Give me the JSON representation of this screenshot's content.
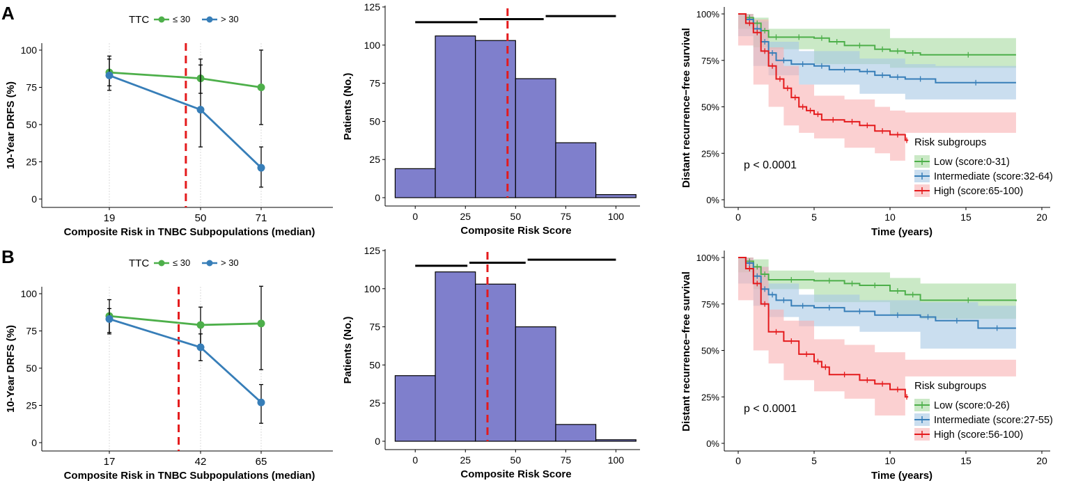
{
  "panel_labels": [
    "A",
    "B"
  ],
  "chart_data": [
    {
      "id": "A1",
      "type": "line",
      "title": "",
      "legend_title": "TTC",
      "legend_labels": [
        "≤ 30",
        "> 30"
      ],
      "xlabel": "Composite Risk in TNBC Subpopulations (median)",
      "ylabel": "10-Year DRFS (%)",
      "categories": [
        "19",
        "50",
        "71"
      ],
      "ylim": [
        0,
        100
      ],
      "yticks": [
        "0",
        "25",
        "50",
        "75",
        "100"
      ],
      "cutoff": 45,
      "series": [
        {
          "name": "≤ 30",
          "color": "#4DAF4A",
          "values": [
            85,
            81,
            75
          ],
          "lower": [
            76,
            71,
            50
          ],
          "upper": [
            94,
            90,
            100
          ]
        },
        {
          "name": "> 30",
          "color": "#377EB8",
          "values": [
            83,
            60,
            21
          ],
          "lower": [
            73,
            35,
            8
          ],
          "upper": [
            96,
            94,
            35
          ]
        }
      ]
    },
    {
      "id": "A2",
      "type": "bar",
      "xlabel": "Composite Risk Score",
      "ylabel": "Patients (No.)",
      "bins": [
        [
          -10,
          10
        ],
        [
          10,
          30
        ],
        [
          30,
          50
        ],
        [
          50,
          70
        ],
        [
          70,
          90
        ],
        [
          90,
          110
        ]
      ],
      "values": [
        19,
        106,
        103,
        78,
        36,
        2
      ],
      "xlim": [
        -15,
        112
      ],
      "ylim": [
        0,
        125
      ],
      "xticks": [
        "0",
        "25",
        "50",
        "75",
        "100"
      ],
      "yticks": [
        "0",
        "25",
        "50",
        "75",
        "100",
        "125"
      ],
      "cutoff": 46,
      "range_bars": [
        [
          0,
          31,
          115
        ],
        [
          32,
          64,
          117
        ],
        [
          65,
          100,
          119
        ]
      ],
      "bar_color": "#7F7FCC"
    },
    {
      "id": "A3",
      "type": "line",
      "xlabel": "Time (years)",
      "ylabel": "Distant recurrence−free survival",
      "xlim": [
        0,
        20
      ],
      "ylim": [
        0,
        1
      ],
      "xticks": [
        "0",
        "5",
        "10",
        "15",
        "20"
      ],
      "yticks": [
        "0%",
        "25%",
        "50%",
        "75%",
        "100%"
      ],
      "pvalue": "p < 0.0001",
      "legend_title": "Risk subgroups",
      "series": [
        {
          "name": "Low (score:0-31)",
          "color": "#4DAF4A",
          "fill": "#A6DBA0",
          "points": [
            [
              0,
              1
            ],
            [
              0.5,
              0.98
            ],
            [
              1,
              0.95
            ],
            [
              1.5,
              0.91
            ],
            [
              2,
              0.875
            ],
            [
              3,
              0.875
            ],
            [
              5,
              0.87
            ],
            [
              6,
              0.85
            ],
            [
              7,
              0.83
            ],
            [
              9,
              0.81
            ],
            [
              10,
              0.8
            ],
            [
              11,
              0.79
            ],
            [
              12,
              0.78
            ],
            [
              18.3,
              0.78
            ]
          ],
          "band": [
            [
              0,
              1,
              1
            ],
            [
              1,
              0.98,
              0.92
            ],
            [
              2,
              0.92,
              0.82
            ],
            [
              5,
              0.92,
              0.81
            ],
            [
              10,
              0.87,
              0.73
            ],
            [
              12,
              0.87,
              0.71
            ],
            [
              18.3,
              0.87,
              0.71
            ]
          ]
        },
        {
          "name": "Intermediate (score:32-64)",
          "color": "#377EB8",
          "fill": "#A6C8E5",
          "points": [
            [
              0,
              1
            ],
            [
              0.5,
              0.97
            ],
            [
              1,
              0.92
            ],
            [
              1.5,
              0.85
            ],
            [
              2,
              0.79
            ],
            [
              2.5,
              0.75
            ],
            [
              3.5,
              0.73
            ],
            [
              5,
              0.72
            ],
            [
              6,
              0.7
            ],
            [
              8,
              0.69
            ],
            [
              9,
              0.67
            ],
            [
              10,
              0.66
            ],
            [
              11,
              0.65
            ],
            [
              13,
              0.63
            ],
            [
              18.3,
              0.63
            ]
          ],
          "band": [
            [
              0,
              1,
              1
            ],
            [
              1,
              0.96,
              0.88
            ],
            [
              2,
              0.85,
              0.72
            ],
            [
              4,
              0.8,
              0.67
            ],
            [
              8,
              0.76,
              0.62
            ],
            [
              11,
              0.73,
              0.57
            ],
            [
              13,
              0.72,
              0.54
            ],
            [
              18.3,
              0.72,
              0.54
            ]
          ]
        },
        {
          "name": "High (score:65-100)",
          "color": "#E41A1C",
          "fill": "#F8B0B3",
          "points": [
            [
              0,
              1
            ],
            [
              0.5,
              0.95
            ],
            [
              1,
              0.9
            ],
            [
              1.5,
              0.8
            ],
            [
              2,
              0.72
            ],
            [
              2.5,
              0.65
            ],
            [
              3,
              0.6
            ],
            [
              3.5,
              0.55
            ],
            [
              4,
              0.5
            ],
            [
              4.5,
              0.48
            ],
            [
              5,
              0.46
            ],
            [
              5.5,
              0.43
            ],
            [
              7,
              0.42
            ],
            [
              8,
              0.4
            ],
            [
              9,
              0.37
            ],
            [
              10,
              0.35
            ],
            [
              11,
              0.32
            ],
            [
              11.2,
              0.32
            ]
          ],
          "band": [
            [
              0,
              1,
              1
            ],
            [
              1,
              0.97,
              0.83
            ],
            [
              2,
              0.82,
              0.62
            ],
            [
              3,
              0.72,
              0.5
            ],
            [
              4,
              0.62,
              0.4
            ],
            [
              5,
              0.56,
              0.36
            ],
            [
              7,
              0.54,
              0.33
            ],
            [
              9,
              0.5,
              0.28
            ],
            [
              10,
              0.48,
              0.25
            ],
            [
              11,
              0.47,
              0.21
            ],
            [
              18.3,
              0.46,
              0.36
            ]
          ]
        }
      ]
    },
    {
      "id": "B1",
      "type": "line",
      "title": "",
      "legend_title": "TTC",
      "legend_labels": [
        "≤ 30",
        "> 30"
      ],
      "xlabel": "Composite Risk in TNBC Subpopulations (median)",
      "ylabel": "10-Year DRFS (%)",
      "categories": [
        "17",
        "42",
        "65"
      ],
      "ylim": [
        0,
        100
      ],
      "yticks": [
        "0",
        "25",
        "50",
        "75",
        "100"
      ],
      "cutoff": 36,
      "series": [
        {
          "name": "≤ 30",
          "color": "#4DAF4A",
          "values": [
            85,
            79,
            80
          ],
          "lower": [
            74,
            66,
            49
          ],
          "upper": [
            96,
            91,
            105
          ]
        },
        {
          "name": "> 30",
          "color": "#377EB8",
          "values": [
            83,
            64,
            27
          ],
          "lower": [
            73,
            55,
            13
          ],
          "upper": [
            90,
            73,
            39
          ]
        }
      ]
    },
    {
      "id": "B2",
      "type": "bar",
      "xlabel": "Composite Risk Score",
      "ylabel": "Patients (No.)",
      "bins": [
        [
          -10,
          10
        ],
        [
          10,
          30
        ],
        [
          30,
          50
        ],
        [
          50,
          70
        ],
        [
          70,
          90
        ],
        [
          90,
          110
        ]
      ],
      "values": [
        43,
        111,
        103,
        75,
        11,
        1
      ],
      "xlim": [
        -15,
        112
      ],
      "ylim": [
        0,
        125
      ],
      "xticks": [
        "0",
        "25",
        "50",
        "75",
        "100"
      ],
      "yticks": [
        "0",
        "25",
        "50",
        "75",
        "100",
        "125"
      ],
      "cutoff": 36,
      "range_bars": [
        [
          0,
          26,
          115
        ],
        [
          27,
          55,
          117
        ],
        [
          56,
          100,
          119
        ]
      ],
      "bar_color": "#7F7FCC"
    },
    {
      "id": "B3",
      "type": "line",
      "xlabel": "Time (years)",
      "ylabel": "Distant recurrence−free survival",
      "xlim": [
        0,
        20
      ],
      "ylim": [
        0,
        1
      ],
      "xticks": [
        "0",
        "5",
        "10",
        "15",
        "20"
      ],
      "yticks": [
        "0%",
        "25%",
        "50%",
        "75%",
        "100%"
      ],
      "pvalue": "p < 0.0001",
      "legend_title": "Risk subgroups",
      "series": [
        {
          "name": "Low (score:0-26)",
          "color": "#4DAF4A",
          "fill": "#A6DBA0",
          "points": [
            [
              0,
              1
            ],
            [
              0.5,
              0.98
            ],
            [
              1,
              0.95
            ],
            [
              1.5,
              0.91
            ],
            [
              2,
              0.88
            ],
            [
              5,
              0.875
            ],
            [
              7,
              0.86
            ],
            [
              8,
              0.85
            ],
            [
              10,
              0.82
            ],
            [
              11,
              0.8
            ],
            [
              12,
              0.77
            ],
            [
              18.3,
              0.765
            ]
          ],
          "band": [
            [
              0,
              1,
              1
            ],
            [
              1,
              0.99,
              0.92
            ],
            [
              2,
              0.93,
              0.83
            ],
            [
              5,
              0.92,
              0.83
            ],
            [
              10,
              0.89,
              0.76
            ],
            [
              12,
              0.86,
              0.69
            ],
            [
              18.3,
              0.85,
              0.67
            ]
          ]
        },
        {
          "name": "Intermediate (score:27-55)",
          "color": "#377EB8",
          "fill": "#A6C8E5",
          "points": [
            [
              0,
              1
            ],
            [
              0.5,
              0.97
            ],
            [
              1,
              0.9
            ],
            [
              1.5,
              0.83
            ],
            [
              2,
              0.8
            ],
            [
              2.5,
              0.77
            ],
            [
              3.5,
              0.74
            ],
            [
              5,
              0.73
            ],
            [
              7,
              0.71
            ],
            [
              9,
              0.69
            ],
            [
              12,
              0.68
            ],
            [
              13,
              0.66
            ],
            [
              15.8,
              0.62
            ],
            [
              18.3,
              0.62
            ]
          ],
          "band": [
            [
              0,
              1,
              1
            ],
            [
              1,
              0.95,
              0.86
            ],
            [
              2,
              0.86,
              0.74
            ],
            [
              4,
              0.8,
              0.68
            ],
            [
              8,
              0.77,
              0.63
            ],
            [
              12,
              0.76,
              0.6
            ],
            [
              15.8,
              0.74,
              0.51
            ],
            [
              18.3,
              0.74,
              0.51
            ]
          ]
        },
        {
          "name": "High (score:56-100)",
          "color": "#E41A1C",
          "fill": "#F8B0B3",
          "points": [
            [
              0,
              1
            ],
            [
              0.5,
              0.94
            ],
            [
              1,
              0.86
            ],
            [
              1.5,
              0.75
            ],
            [
              2,
              0.6
            ],
            [
              3,
              0.55
            ],
            [
              4,
              0.48
            ],
            [
              5,
              0.44
            ],
            [
              5.5,
              0.41
            ],
            [
              6,
              0.37
            ],
            [
              8,
              0.34
            ],
            [
              9,
              0.32
            ],
            [
              10,
              0.29
            ],
            [
              11,
              0.25
            ],
            [
              11.2,
              0.25
            ]
          ],
          "band": [
            [
              0,
              1,
              1
            ],
            [
              1,
              0.95,
              0.77
            ],
            [
              2,
              0.72,
              0.5
            ],
            [
              3,
              0.66,
              0.43
            ],
            [
              5,
              0.56,
              0.34
            ],
            [
              7,
              0.53,
              0.28
            ],
            [
              9,
              0.49,
              0.24
            ],
            [
              11,
              0.45,
              0.15
            ],
            [
              18.3,
              0.42,
              0.36
            ]
          ]
        }
      ]
    }
  ]
}
